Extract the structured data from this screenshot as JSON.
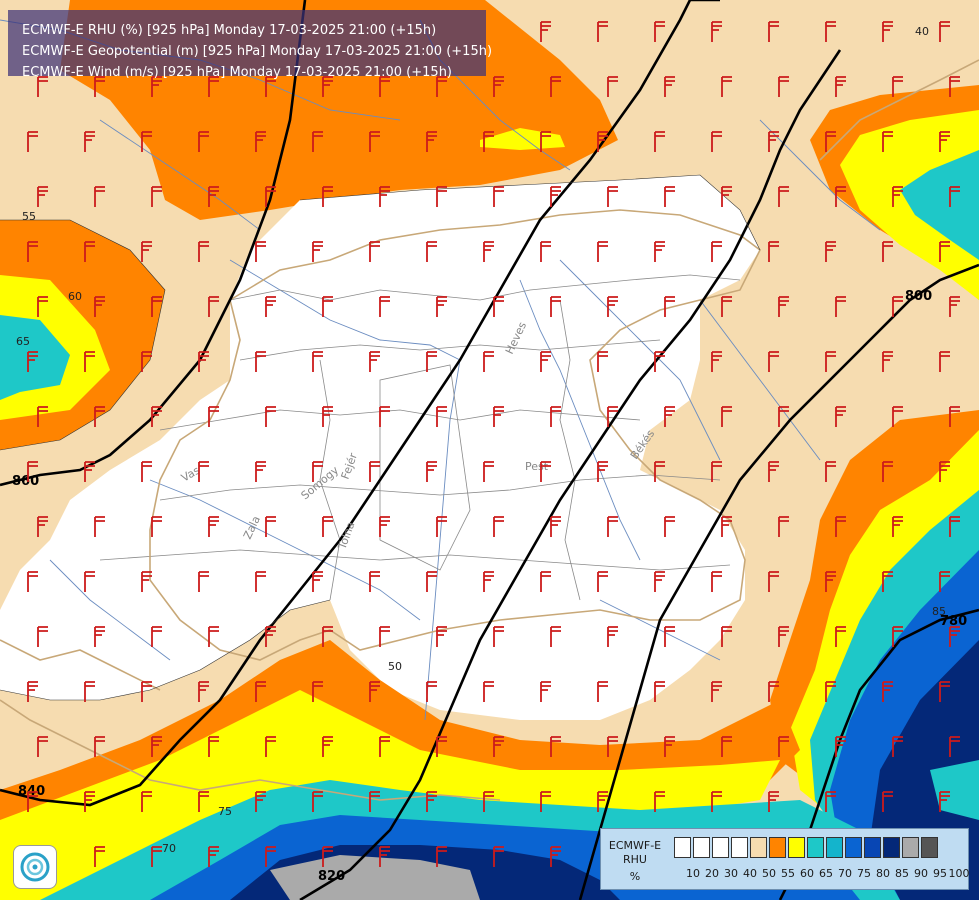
{
  "header": {
    "line1": "ECMWF-E RHU (%) [925 hPa] Monday 17-03-2025 21:00 (+15h)",
    "line2": "ECMWF-E Geopotential (m) [925 hPa] Monday 17-03-2025 21:00 (+15h)",
    "line3": "ECMWF-E Wind (m/s) [925 hPa] Monday 17-03-2025 21:00 (+15h)"
  },
  "legend": {
    "name1": "ECMWF-E",
    "name2": "RHU",
    "unit": "%",
    "levels": [
      "10",
      "20",
      "30",
      "40",
      "50",
      "55",
      "60",
      "65",
      "70",
      "75",
      "80",
      "85",
      "90",
      "95",
      "100"
    ],
    "colors": [
      "#ffffff",
      "#ffffff",
      "#ffffff",
      "#ffffff",
      "#f6dcb0",
      "#ff8400",
      "#ffff00",
      "#1ec8c8",
      "#14b4cc",
      "#0a64d2",
      "#0846b4",
      "#042878",
      "#aaaaaa",
      "#555555"
    ]
  },
  "contour_labels": {
    "geopotential": [
      "860",
      "840",
      "820",
      "800",
      "780"
    ],
    "rhu": [
      "55",
      "60",
      "65",
      "50",
      "40",
      "75",
      "70",
      "85"
    ]
  },
  "place_labels": [
    "Heves",
    "Pest",
    "Békés",
    "Vas",
    "Zala",
    "Somogy",
    "Fejér",
    "Tolna"
  ],
  "colors": {
    "rh_50": "#f6dcb0",
    "rh_55": "#ff8400",
    "rh_60": "#ffff00",
    "rh_65": "#1ec8c8",
    "rh_75": "#0a64d2",
    "rh_85": "#042878",
    "wind_barb": "#cc1b1b",
    "contour": "#000000"
  },
  "icons": {
    "wind": "wind-barb-icon",
    "logo": "swirl-logo-icon"
  }
}
